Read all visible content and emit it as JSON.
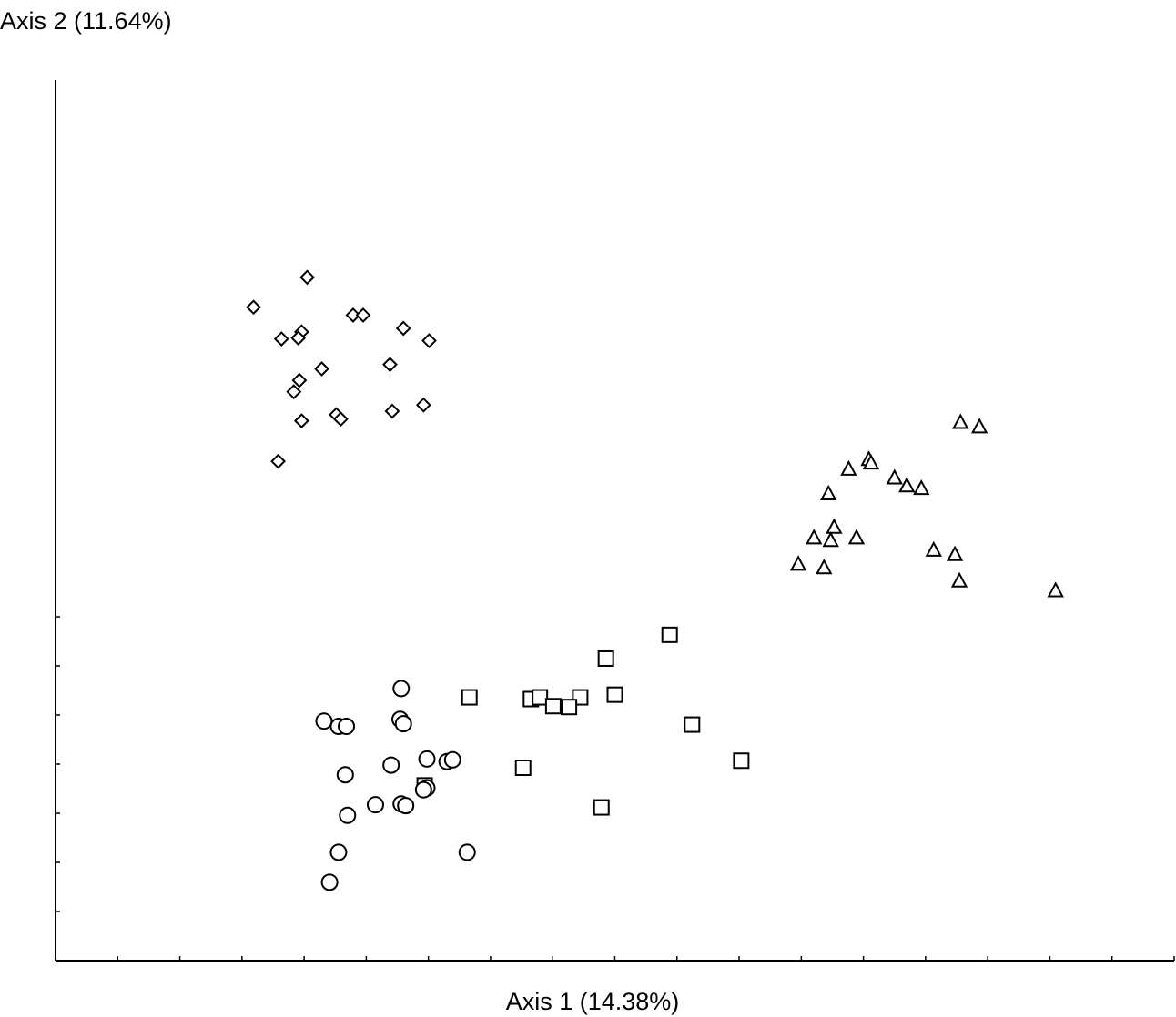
{
  "chart_data": {
    "type": "scatter",
    "xlabel": "Axis 1 (14.38%)",
    "ylabel": "Axis 2 (11.64%)",
    "xlim": [
      0,
      100
    ],
    "ylim": [
      0,
      100
    ],
    "grid": false,
    "legend": "none",
    "series": [
      {
        "marker": "diamond",
        "points": [
          [
            22.5,
            77.6
          ],
          [
            17.7,
            74.2
          ],
          [
            20.2,
            70.6
          ],
          [
            22.0,
            71.4
          ],
          [
            21.7,
            70.7
          ],
          [
            26.6,
            73.3
          ],
          [
            27.5,
            73.3
          ],
          [
            31.1,
            71.8
          ],
          [
            33.4,
            70.4
          ],
          [
            23.8,
            67.2
          ],
          [
            29.9,
            67.7
          ],
          [
            21.8,
            65.9
          ],
          [
            21.3,
            64.6
          ],
          [
            22.0,
            61.3
          ],
          [
            25.1,
            62.0
          ],
          [
            25.5,
            61.5
          ],
          [
            30.1,
            62.4
          ],
          [
            32.9,
            63.1
          ],
          [
            19.9,
            56.7
          ]
        ]
      },
      {
        "marker": "triangle",
        "points": [
          [
            80.9,
            61.1
          ],
          [
            82.6,
            60.6
          ],
          [
            72.7,
            56.9
          ],
          [
            72.9,
            56.5
          ],
          [
            70.9,
            55.8
          ],
          [
            75.0,
            54.8
          ],
          [
            77.4,
            53.6
          ],
          [
            76.1,
            53.9
          ],
          [
            69.1,
            53.0
          ],
          [
            69.6,
            49.2
          ],
          [
            67.8,
            48.0
          ],
          [
            69.3,
            47.7
          ],
          [
            71.6,
            48.0
          ],
          [
            78.5,
            46.6
          ],
          [
            80.4,
            46.1
          ],
          [
            66.4,
            45.0
          ],
          [
            68.7,
            44.6
          ],
          [
            80.8,
            43.1
          ],
          [
            89.4,
            42.0
          ]
        ]
      },
      {
        "marker": "square",
        "points": [
          [
            49.2,
            34.3
          ],
          [
            54.9,
            37.0
          ],
          [
            46.9,
            29.9
          ],
          [
            37.0,
            29.9
          ],
          [
            42.5,
            29.7
          ],
          [
            43.3,
            29.9
          ],
          [
            44.5,
            28.9
          ],
          [
            45.9,
            28.8
          ],
          [
            50.0,
            30.2
          ],
          [
            56.9,
            26.8
          ],
          [
            61.3,
            22.7
          ],
          [
            41.8,
            21.9
          ],
          [
            33.0,
            19.9
          ],
          [
            48.8,
            17.4
          ]
        ]
      },
      {
        "marker": "circle",
        "points": [
          [
            24.0,
            27.2
          ],
          [
            30.9,
            30.9
          ],
          [
            25.3,
            26.6
          ],
          [
            26.0,
            26.6
          ],
          [
            30.8,
            27.4
          ],
          [
            31.1,
            26.9
          ],
          [
            33.2,
            22.9
          ],
          [
            35.0,
            22.6
          ],
          [
            35.5,
            22.8
          ],
          [
            30.0,
            22.2
          ],
          [
            25.9,
            21.1
          ],
          [
            33.2,
            19.6
          ],
          [
            32.9,
            19.4
          ],
          [
            30.9,
            17.8
          ],
          [
            31.3,
            17.6
          ],
          [
            28.6,
            17.7
          ],
          [
            26.1,
            16.5
          ],
          [
            25.3,
            12.3
          ],
          [
            36.8,
            12.3
          ],
          [
            24.5,
            8.9
          ]
        ]
      }
    ]
  }
}
